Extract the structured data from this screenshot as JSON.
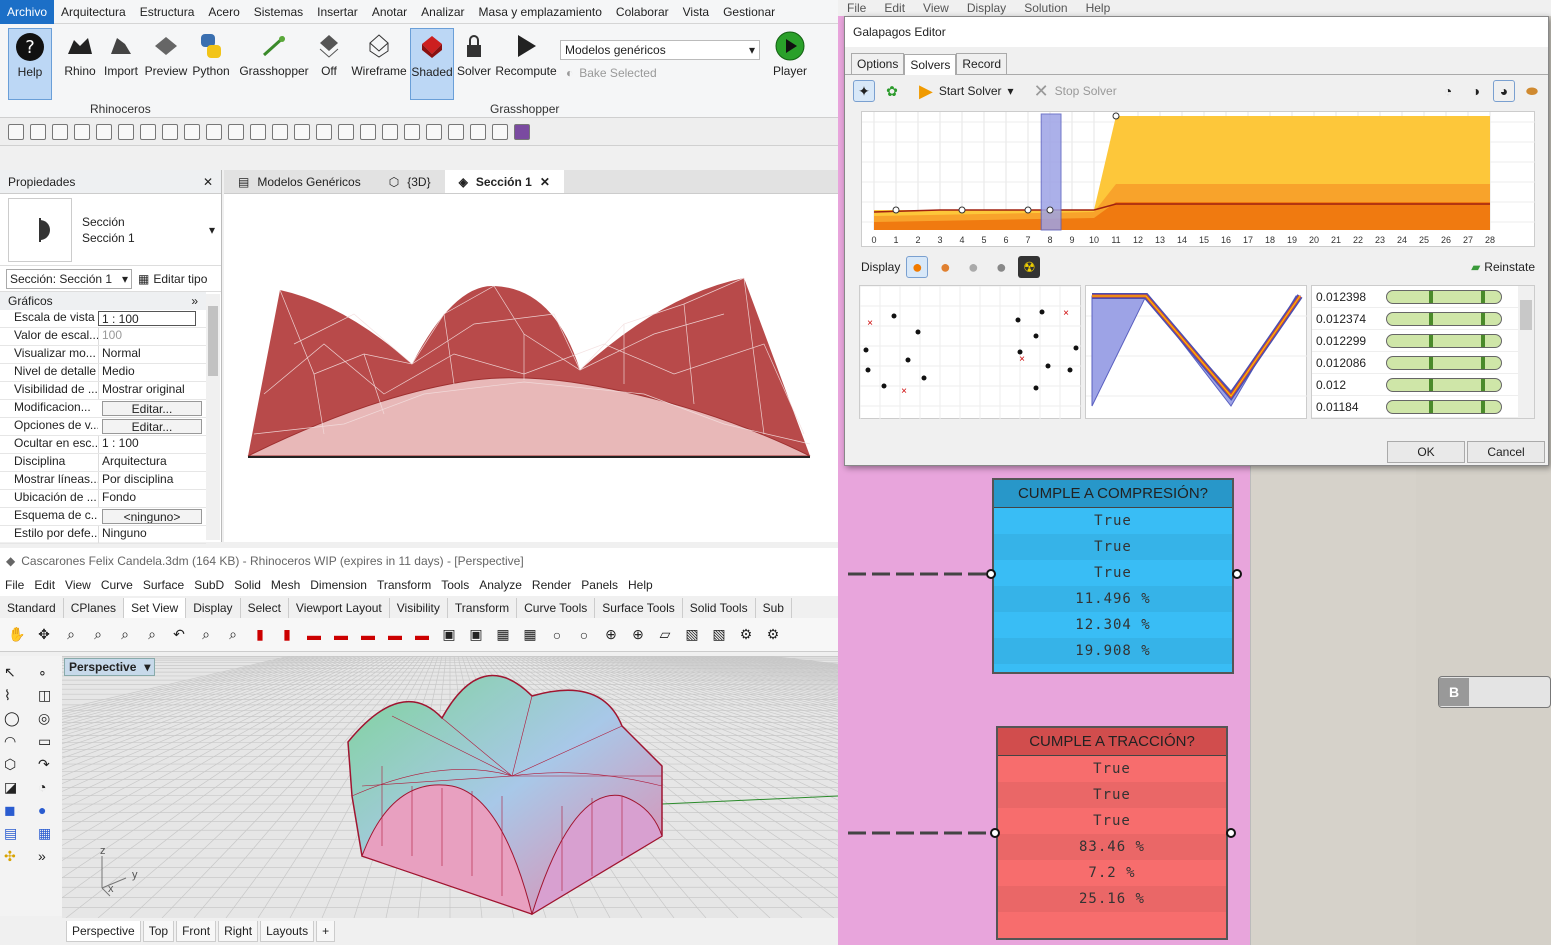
{
  "revit": {
    "menu": [
      "Archivo",
      "Arquitectura",
      "Estructura",
      "Acero",
      "Sistemas",
      "Insertar",
      "Anotar",
      "Analizar",
      "Masa y emplazamiento",
      "Colaborar",
      "Vista",
      "Gestionar"
    ],
    "ribbon": {
      "help": "Help",
      "rhino": "Rhino",
      "import": "Import",
      "preview": "Preview",
      "python": "Python",
      "grasshopper": "Grasshopper",
      "off": "Off",
      "wireframe": "Wireframe",
      "shaded": "Shaded",
      "solver": "Solver",
      "recompute": "Recompute",
      "player": "Player",
      "dropdown": "Modelos genéricos",
      "bake": "Bake Selected",
      "panel_rhino": "Rhinoceros",
      "panel_gh": "Grasshopper"
    },
    "properties": {
      "title": "Propiedades",
      "type_line1": "Sección",
      "type_line2": "Sección 1",
      "selector": "Sección: Sección 1",
      "edit_type": "Editar tipo",
      "group": "Gráficos",
      "rows": [
        {
          "k": "Escala de vista",
          "v": "1 : 100"
        },
        {
          "k": "Valor de escal...",
          "v": "100"
        },
        {
          "k": "Visualizar mo...",
          "v": "Normal"
        },
        {
          "k": "Nivel de detalle",
          "v": "Medio"
        },
        {
          "k": "Visibilidad de ...",
          "v": "Mostrar original"
        },
        {
          "k": "Modificacion...",
          "v": "Editar..."
        },
        {
          "k": "Opciones de v...",
          "v": "Editar..."
        },
        {
          "k": "Ocultar en esc...",
          "v": "1 : 100"
        },
        {
          "k": "Disciplina",
          "v": "Arquitectura"
        },
        {
          "k": "Mostrar líneas...",
          "v": "Por disciplina"
        },
        {
          "k": "Ubicación de ...",
          "v": "Fondo"
        },
        {
          "k": "Esquema de c...",
          "v": "<ninguno>"
        },
        {
          "k": "Estilo por defe...",
          "v": "Ninguno"
        }
      ]
    },
    "view_tabs": [
      "Modelos Genéricos",
      "{3D}",
      "Sección 1"
    ]
  },
  "rhino": {
    "title": "Cascarones Felix Candela.3dm (164 KB) - Rhinoceros WIP (expires in 11 days) - [Perspective]",
    "menu": [
      "File",
      "Edit",
      "View",
      "Curve",
      "Surface",
      "SubD",
      "Solid",
      "Mesh",
      "Dimension",
      "Transform",
      "Tools",
      "Analyze",
      "Render",
      "Panels",
      "Help"
    ],
    "tabs": [
      "Standard",
      "CPlanes",
      "Set View",
      "Display",
      "Select",
      "Viewport Layout",
      "Visibility",
      "Transform",
      "Curve Tools",
      "Surface Tools",
      "Solid Tools",
      "Sub"
    ],
    "viewport_label": "Perspective",
    "vtabs": [
      "Perspective",
      "Top",
      "Front",
      "Right",
      "Layouts"
    ],
    "axes": {
      "z": "z",
      "y": "y",
      "x": "x"
    }
  },
  "gh": {
    "menu": [
      "File",
      "Edit",
      "View",
      "Display",
      "Solution",
      "Help"
    ],
    "galapagos": {
      "title": "Galapagos Editor",
      "tabs": [
        "Options",
        "Solvers",
        "Record"
      ],
      "start": "Start Solver",
      "stop": "Stop Solver",
      "display": "Display",
      "reinstate": "Reinstate",
      "axis": [
        "0",
        "1",
        "2",
        "3",
        "4",
        "5",
        "6",
        "7",
        "8",
        "9",
        "10",
        "11",
        "12",
        "13",
        "14",
        "15",
        "16",
        "17",
        "18",
        "19",
        "20",
        "21",
        "22",
        "23",
        "24",
        "25",
        "26",
        "27",
        "28"
      ],
      "genomes": [
        "0.012398",
        "0.012374",
        "0.012299",
        "0.012086",
        "0.012",
        "0.01184"
      ],
      "ok": "OK",
      "cancel": "Cancel"
    },
    "compresion": {
      "title": "CUMPLE A COMPRESIÓN?",
      "values": [
        "True",
        "True",
        "True",
        "11.496 %",
        "12.304 %",
        "19.908 %"
      ]
    },
    "traccion": {
      "title": "CUMPLE A TRACCIÓN?",
      "values": [
        "True",
        "True",
        "True",
        "83.46 %",
        "7.2 %",
        "25.16 %"
      ]
    },
    "slider_label": "B"
  }
}
